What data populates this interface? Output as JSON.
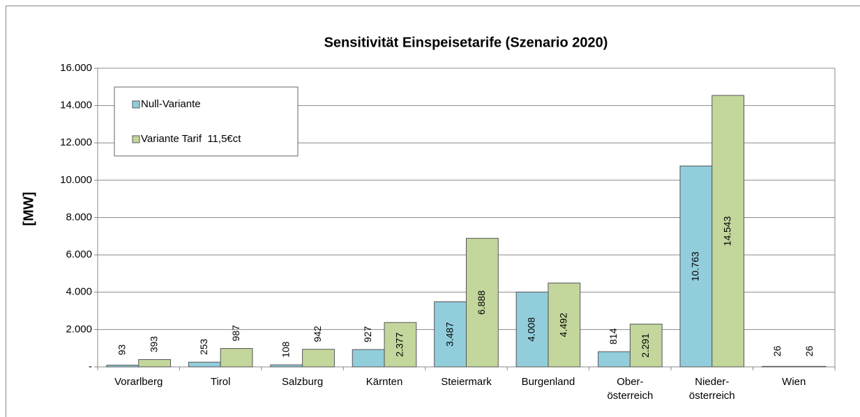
{
  "chart_data": {
    "type": "bar",
    "title": "Sensitivität Einspeisetarife (Szenario 2020)",
    "y_label": "[MW]",
    "categories": [
      "Vorarlberg",
      "Tirol",
      "Salzburg",
      "Kärnten",
      "Steiermark",
      "Burgenland",
      "Ober-\nösterreich",
      "Nieder-\nösterreich",
      "Wien"
    ],
    "series": [
      {
        "name": "Null-Variante",
        "color": "#92cddc",
        "values": [
          93,
          253,
          108,
          927,
          3487,
          4008,
          814,
          10763,
          26
        ],
        "value_labels": [
          "93",
          "253",
          "108",
          "927",
          "3.487",
          "4.008",
          "814",
          "10.763",
          "26"
        ]
      },
      {
        "name": "Variante Tarif  11,5€ct",
        "color": "#c3d69b",
        "values": [
          393,
          987,
          942,
          2377,
          6888,
          4492,
          2291,
          14543,
          26
        ],
        "value_labels": [
          "393",
          "987",
          "942",
          "2.377",
          "6.888",
          "4.492",
          "2.291",
          "14.543",
          "26"
        ]
      }
    ],
    "ylim": [
      0,
      16000
    ],
    "yticks": [
      {
        "value": 0,
        "label": "-"
      },
      {
        "value": 2000,
        "label": "2.000"
      },
      {
        "value": 4000,
        "label": "4.000"
      },
      {
        "value": 6000,
        "label": "6.000"
      },
      {
        "value": 8000,
        "label": "8.000"
      },
      {
        "value": 10000,
        "label": "10.000"
      },
      {
        "value": 12000,
        "label": "12.000"
      },
      {
        "value": 14000,
        "label": "14.000"
      },
      {
        "value": 16000,
        "label": "16.000"
      }
    ],
    "grid": true,
    "legend": "upper left"
  }
}
